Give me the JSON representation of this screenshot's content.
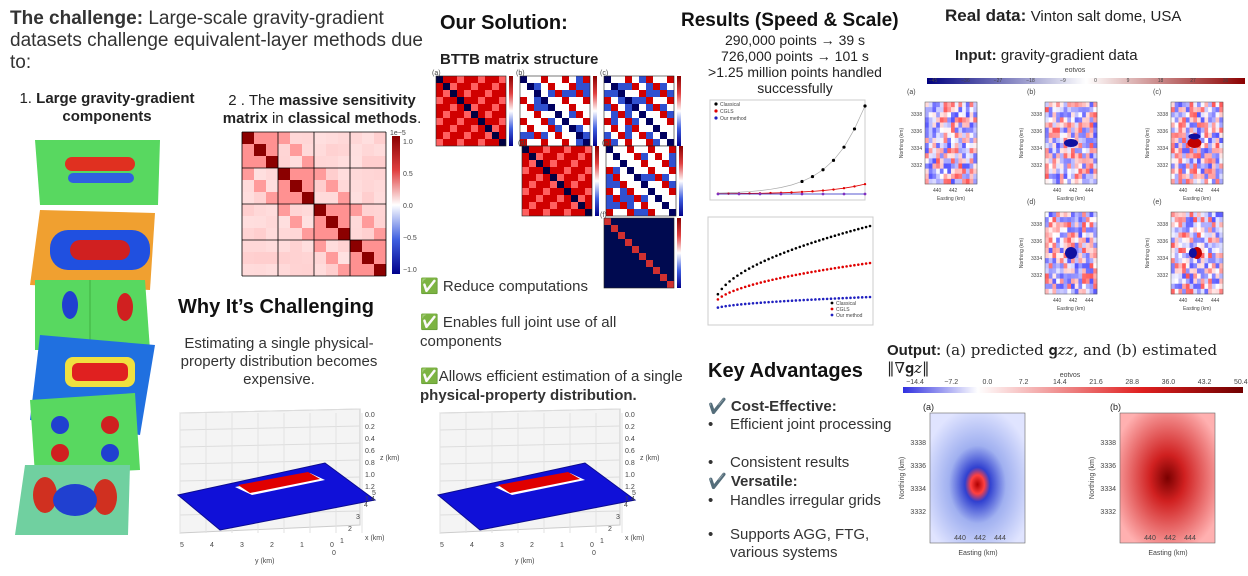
{
  "challenge": {
    "title_bold": "The challenge:",
    "title_rest": "Large-scale gravity-gradient datasets challenge equivalent-layer methods due to:",
    "item1_num": "1.",
    "item1_bold": "Large gravity-gradient components",
    "item2_num": "2 .",
    "item2_pre": "The",
    "item2_b1": "massive sensitivity matrix",
    "item2_mid": "in",
    "item2_b2": "classical methods",
    "item2_end": ".",
    "colorbar_exp": "1e−5",
    "colorbar_ticks": [
      "1.0",
      "0.5",
      "0.0",
      "−0.5",
      "−1.0"
    ]
  },
  "why": {
    "title": "Why It’s Challenging",
    "text": "Estimating  a single physical-property distribution becomes expensive.",
    "plot": {
      "z_label": "z (km)",
      "y_label": "y (km)",
      "x_label": "x (km)",
      "z_ticks": [
        "0.0",
        "0.2",
        "0.4",
        "0.6",
        "0.8",
        "1.0",
        "1.2",
        "1.4"
      ],
      "y_ticks": [
        "5",
        "4",
        "3",
        "2",
        "1",
        "0"
      ],
      "x_ticks": [
        "0",
        "1",
        "2",
        "3",
        "4",
        "5"
      ]
    }
  },
  "solution": {
    "title": "Our Solution:",
    "subtitle": "BTTB matrix structure",
    "panel_labels": [
      "(a)",
      "(b)",
      "(c)",
      "(d)",
      "(e)",
      "(f)"
    ],
    "bullets": [
      {
        "icon": "✅",
        "text": "Reduce computations"
      },
      {
        "icon": "✅",
        "text": " Enables full joint use of all components"
      },
      {
        "icon": "✅",
        "text": "Allows efficient estimation of a single ",
        "bold": "physical-property distribution."
      }
    ]
  },
  "results": {
    "title": "Results (Speed & Scale)",
    "lines": [
      "290,000 points → 39 s",
      "726,000 points → 101 s",
      ">1.25 million points handled successfully"
    ],
    "legend": [
      "Classical",
      "CGLS",
      "Our method"
    ],
    "series_colors": [
      "#000000",
      "#e00000",
      "#2020c0"
    ]
  },
  "advantages": {
    "title": "Key Advantages",
    "groups": [
      {
        "icon": "✔️",
        "title": "Cost-Effective:",
        "items": [
          "Efficient joint processing",
          "Consistent results"
        ]
      },
      {
        "icon": "✔️",
        "title": "Versatile:",
        "items": [
          "Handles irregular grids",
          "Supports AGG, FTG, various systems"
        ]
      }
    ],
    "bullet_char": "•"
  },
  "realdata": {
    "title_bold": "Real data:",
    "title_rest": "Vinton salt dome, USA",
    "input_bold": "Input:",
    "input_rest": "gravity-gradient data",
    "input_cbar_label": "eotvos",
    "input_cbar_ticks": [
      "−45",
      "−36",
      "−27",
      "−18",
      "−9",
      "0",
      "9",
      "18",
      "27",
      "36"
    ],
    "panel_labels": [
      "(a)",
      "(b)",
      "(c)",
      "(d)",
      "(e)"
    ],
    "northing_label": "Northing (km)",
    "easting_label": "Easting (km)",
    "n_ticks": [
      "3338",
      "3336",
      "3334",
      "3332"
    ],
    "e_ticks": [
      "440",
      "442",
      "444"
    ],
    "output_bold": "Output:",
    "output_rest": "(a) predicted 𝐠𝑧𝑧, and (b) estimated ‖∇𝐠𝑧‖",
    "output_cbar_label": "eotvos",
    "output_cbar_ticks": [
      "−14.4",
      "−7.2",
      "0.0",
      "7.2",
      "14.4",
      "21.6",
      "28.8",
      "36.0",
      "43.2",
      "50.4"
    ],
    "output_panels": [
      "(a)",
      "(b)"
    ]
  }
}
